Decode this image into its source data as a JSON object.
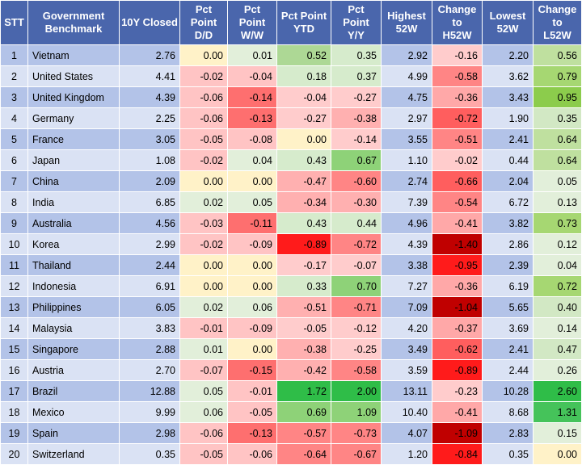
{
  "headers": {
    "stt": "STT",
    "benchmark": [
      "Government",
      "Benchmark"
    ],
    "closed": "10Y Closed",
    "dd": [
      "Pct",
      "Point",
      "D/D"
    ],
    "ww": [
      "Pct",
      "Point",
      "W/W"
    ],
    "ytd": [
      "Pct Point",
      "YTD"
    ],
    "yy": [
      "Pct",
      "Point",
      "Y/Y"
    ],
    "high52": [
      "Highest",
      "52W"
    ],
    "chg_h52": [
      "Change",
      "to",
      "H52W"
    ],
    "low52": [
      "Lowest",
      "52W"
    ],
    "chg_l52": [
      "Change",
      "to",
      "L52W"
    ]
  },
  "colors": {
    "header_bg": "#4a66ac",
    "row_odd": "#b3c3e8",
    "row_even": "#dae2f4"
  },
  "rows": [
    {
      "stt": "1",
      "country": "Vietnam",
      "closed": "2.76",
      "dd": "0.00",
      "ww": "0.01",
      "ytd": "0.52",
      "yy": "0.35",
      "high52": "2.92",
      "chg_h52": "-0.16",
      "low52": "2.20",
      "chg_l52": "0.56"
    },
    {
      "stt": "2",
      "country": "United States",
      "closed": "4.41",
      "dd": "-0.02",
      "ww": "-0.04",
      "ytd": "0.18",
      "yy": "0.37",
      "high52": "4.99",
      "chg_h52": "-0.58",
      "low52": "3.62",
      "chg_l52": "0.79"
    },
    {
      "stt": "3",
      "country": "United Kingdom",
      "closed": "4.39",
      "dd": "-0.06",
      "ww": "-0.14",
      "ytd": "-0.04",
      "yy": "-0.27",
      "high52": "4.75",
      "chg_h52": "-0.36",
      "low52": "3.43",
      "chg_l52": "0.95"
    },
    {
      "stt": "4",
      "country": "Germany",
      "closed": "2.25",
      "dd": "-0.06",
      "ww": "-0.13",
      "ytd": "-0.27",
      "yy": "-0.38",
      "high52": "2.97",
      "chg_h52": "-0.72",
      "low52": "1.90",
      "chg_l52": "0.35"
    },
    {
      "stt": "5",
      "country": "France",
      "closed": "3.05",
      "dd": "-0.05",
      "ww": "-0.08",
      "ytd": "0.00",
      "yy": "-0.14",
      "high52": "3.55",
      "chg_h52": "-0.51",
      "low52": "2.41",
      "chg_l52": "0.64"
    },
    {
      "stt": "6",
      "country": "Japan",
      "closed": "1.08",
      "dd": "-0.02",
      "ww": "0.04",
      "ytd": "0.43",
      "yy": "0.67",
      "high52": "1.10",
      "chg_h52": "-0.02",
      "low52": "0.44",
      "chg_l52": "0.64"
    },
    {
      "stt": "7",
      "country": "China",
      "closed": "2.09",
      "dd": "0.00",
      "ww": "0.00",
      "ytd": "-0.47",
      "yy": "-0.60",
      "high52": "2.74",
      "chg_h52": "-0.66",
      "low52": "2.04",
      "chg_l52": "0.05"
    },
    {
      "stt": "8",
      "country": "India",
      "closed": "6.85",
      "dd": "0.02",
      "ww": "0.05",
      "ytd": "-0.34",
      "yy": "-0.30",
      "high52": "7.39",
      "chg_h52": "-0.54",
      "low52": "6.72",
      "chg_l52": "0.13"
    },
    {
      "stt": "9",
      "country": "Australia",
      "closed": "4.56",
      "dd": "-0.03",
      "ww": "-0.11",
      "ytd": "0.43",
      "yy": "0.44",
      "high52": "4.96",
      "chg_h52": "-0.41",
      "low52": "3.82",
      "chg_l52": "0.73"
    },
    {
      "stt": "10",
      "country": "Korea",
      "closed": "2.99",
      "dd": "-0.02",
      "ww": "-0.09",
      "ytd": "-0.89",
      "yy": "-0.72",
      "high52": "4.39",
      "chg_h52": "-1.40",
      "low52": "2.86",
      "chg_l52": "0.12"
    },
    {
      "stt": "11",
      "country": "Thailand",
      "closed": "2.44",
      "dd": "0.00",
      "ww": "0.00",
      "ytd": "-0.17",
      "yy": "-0.07",
      "high52": "3.38",
      "chg_h52": "-0.95",
      "low52": "2.39",
      "chg_l52": "0.04"
    },
    {
      "stt": "12",
      "country": "Indonesia",
      "closed": "6.91",
      "dd": "0.00",
      "ww": "0.00",
      "ytd": "0.33",
      "yy": "0.70",
      "high52": "7.27",
      "chg_h52": "-0.36",
      "low52": "6.19",
      "chg_l52": "0.72"
    },
    {
      "stt": "13",
      "country": "Philippines",
      "closed": "6.05",
      "dd": "0.02",
      "ww": "0.06",
      "ytd": "-0.51",
      "yy": "-0.71",
      "high52": "7.09",
      "chg_h52": "-1.04",
      "low52": "5.65",
      "chg_l52": "0.40"
    },
    {
      "stt": "14",
      "country": "Malaysia",
      "closed": "3.83",
      "dd": "-0.01",
      "ww": "-0.09",
      "ytd": "-0.05",
      "yy": "-0.12",
      "high52": "4.20",
      "chg_h52": "-0.37",
      "low52": "3.69",
      "chg_l52": "0.14"
    },
    {
      "stt": "15",
      "country": "Singapore",
      "closed": "2.88",
      "dd": "0.01",
      "ww": "0.00",
      "ytd": "-0.38",
      "yy": "-0.25",
      "high52": "3.49",
      "chg_h52": "-0.62",
      "low52": "2.41",
      "chg_l52": "0.47"
    },
    {
      "stt": "16",
      "country": "Austria",
      "closed": "2.70",
      "dd": "-0.07",
      "ww": "-0.15",
      "ytd": "-0.42",
      "yy": "-0.58",
      "high52": "3.59",
      "chg_h52": "-0.89",
      "low52": "2.44",
      "chg_l52": "0.26"
    },
    {
      "stt": "17",
      "country": "Brazil",
      "closed": "12.88",
      "dd": "0.05",
      "ww": "-0.01",
      "ytd": "1.72",
      "yy": "2.00",
      "high52": "13.11",
      "chg_h52": "-0.23",
      "low52": "10.28",
      "chg_l52": "2.60"
    },
    {
      "stt": "18",
      "country": "Mexico",
      "closed": "9.99",
      "dd": "0.06",
      "ww": "-0.05",
      "ytd": "0.69",
      "yy": "1.09",
      "high52": "10.40",
      "chg_h52": "-0.41",
      "low52": "8.68",
      "chg_l52": "1.31"
    },
    {
      "stt": "19",
      "country": "Spain",
      "closed": "2.98",
      "dd": "-0.06",
      "ww": "-0.13",
      "ytd": "-0.57",
      "yy": "-0.73",
      "high52": "4.07",
      "chg_h52": "-1.09",
      "low52": "2.83",
      "chg_l52": "0.15"
    },
    {
      "stt": "20",
      "country": "Switzerland",
      "closed": "0.35",
      "dd": "-0.05",
      "ww": "-0.06",
      "ytd": "-0.64",
      "yy": "-0.67",
      "high52": "1.20",
      "chg_h52": "-0.84",
      "low52": "0.35",
      "chg_l52": "0.00"
    }
  ]
}
